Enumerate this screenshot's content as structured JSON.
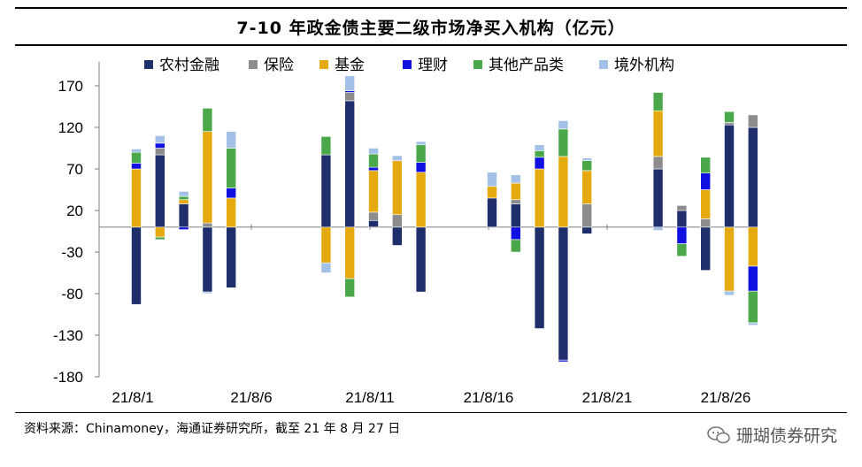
{
  "title": "7-10 年政金债主要二级市场净买入机构（亿元）",
  "source": "资料来源：Chinamoney，海通证券研究所，截至 21 年 8 月 27 日",
  "watermark": "珊瑚债券研究",
  "chart_data": {
    "type": "stacked-bar",
    "title": "7-10 年政金债主要二级市场净买入机构（亿元）",
    "ylim": [
      -180,
      180
    ],
    "yticks": [
      170,
      120,
      70,
      20,
      -30,
      -80,
      -130,
      -180
    ],
    "xtick_labels": [
      "21/8/1",
      "21/8/6",
      "21/8/11",
      "21/8/16",
      "21/8/21",
      "21/8/26"
    ],
    "legend_position": "top",
    "colors": {
      "农村金融": "#1f2f6b",
      "保险": "#8c8c8c",
      "基金": "#e5aa10",
      "理财": "#1010e0",
      "其他产品类": "#4aa84a",
      "境外机构": "#a3c1e6"
    },
    "series": [
      "农村金融",
      "保险",
      "基金",
      "理财",
      "其他产品类",
      "境外机构"
    ],
    "bars": [
      {
        "day": 1,
        "values": {
          "农村金融": -93,
          "基金": 70,
          "理财": 7,
          "其他产品类": 13,
          "境外机构": 4
        }
      },
      {
        "day": 2,
        "values": {
          "农村金融": 87,
          "保险": 8,
          "基金": -12,
          "理财": 6,
          "其他产品类": -3,
          "境外机构": 9
        }
      },
      {
        "day": 3,
        "values": {
          "农村金融": 28,
          "基金": 5,
          "理财": -3,
          "其他产品类": 4,
          "境外机构": 6
        }
      },
      {
        "day": 4,
        "values": {
          "农村金融": -78,
          "保险": 5,
          "基金": 110,
          "其他产品类": 28,
          "境外机构": -2
        }
      },
      {
        "day": 5,
        "values": {
          "农村金融": -73,
          "基金": 35,
          "理财": 12,
          "其他产品类": 48,
          "境外机构": 20
        }
      },
      {
        "day": 9,
        "values": {
          "农村金融": 87,
          "基金": -43,
          "其他产品类": 22,
          "境外机构": -12
        }
      },
      {
        "day": 10,
        "values": {
          "农村金融": 152,
          "保险": 10,
          "基金": -62,
          "理财": 2,
          "其他产品类": -22,
          "境外机构": 18
        }
      },
      {
        "day": 11,
        "values": {
          "农村金融": 8,
          "保险": 10,
          "基金": 50,
          "理财": 4,
          "其他产品类": 16,
          "境外机构": 7
        }
      },
      {
        "day": 12,
        "values": {
          "农村金融": -22,
          "保险": 15,
          "基金": 65,
          "境外机构": 6
        }
      },
      {
        "day": 13,
        "values": {
          "农村金融": -78,
          "基金": 66,
          "理财": 12,
          "其他产品类": 21,
          "境外机构": 4
        }
      },
      {
        "day": 16,
        "values": {
          "农村金融": 35,
          "基金": 14,
          "境外机构": 17
        }
      },
      {
        "day": 17,
        "values": {
          "农村金融": 28,
          "保险": 5,
          "基金": 20,
          "理财": -15,
          "其他产品类": -15,
          "境外机构": 10
        }
      },
      {
        "day": 18,
        "values": {
          "农村金融": -122,
          "基金": 70,
          "理财": 14,
          "其他产品类": 8,
          "境外机构": 7
        }
      },
      {
        "day": 19,
        "values": {
          "农村金融": -160,
          "基金": 85,
          "理财": -2,
          "其他产品类": 33,
          "境外机构": 10
        }
      },
      {
        "day": 20,
        "values": {
          "农村金融": -8,
          "保险": 28,
          "基金": 40,
          "其他产品类": 12,
          "境外机构": 3
        }
      },
      {
        "day": 23,
        "values": {
          "农村金融": 70,
          "保险": 15,
          "基金": 55,
          "其他产品类": 22,
          "境外机构": -4
        }
      },
      {
        "day": 24,
        "values": {
          "农村金融": 20,
          "保险": 6,
          "理财": -20,
          "其他产品类": -15
        }
      },
      {
        "day": 25,
        "values": {
          "农村金融": -52,
          "保险": 10,
          "基金": 35,
          "理财": 20,
          "其他产品类": 19
        }
      },
      {
        "day": 26,
        "values": {
          "农村金融": 123,
          "保险": 3,
          "基金": -77,
          "其他产品类": 13,
          "境外机构": -5
        }
      },
      {
        "day": 27,
        "values": {
          "农村金融": 120,
          "保险": 15,
          "基金": -47,
          "理财": -30,
          "其他产品类": -38,
          "境外机构": -3
        }
      }
    ]
  }
}
